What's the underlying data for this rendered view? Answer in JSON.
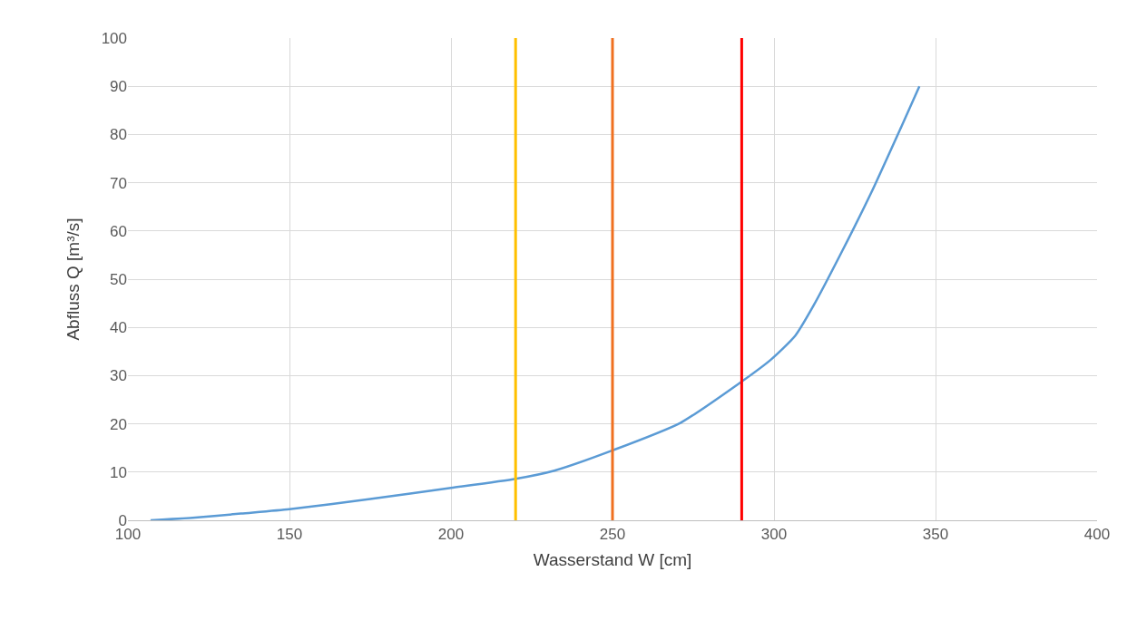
{
  "chart_data": {
    "type": "line",
    "xlabel": "Wasserstand W [cm]",
    "ylabel": "Abfluss Q [m³/s]",
    "x": [
      107,
      120,
      135,
      150,
      175,
      200,
      220,
      232,
      250,
      271,
      289,
      299,
      306.6,
      312.3,
      320.7,
      330,
      339.4,
      345
    ],
    "series": [
      {
        "color": "#5b9bd5",
        "values": [
          0,
          0.5,
          1.4,
          2.3,
          4.4,
          6.7,
          8.6,
          10.3,
          14.5,
          20.2,
          28.3,
          33.3,
          38.3,
          44.6,
          55.3,
          67.8,
          81.6,
          90
        ]
      }
    ],
    "xlim": [
      100,
      400
    ],
    "xticks": [
      100,
      150,
      200,
      250,
      300,
      350,
      400
    ],
    "ylim": [
      0,
      100
    ],
    "yticks": [
      0,
      10,
      20,
      30,
      40,
      50,
      60,
      70,
      80,
      90,
      100
    ],
    "ref_lines": [
      {
        "axis": "x",
        "value": 220,
        "color": "#ffc000"
      },
      {
        "axis": "x",
        "value": 250,
        "color": "#f07020"
      },
      {
        "axis": "x",
        "value": 290,
        "color": "#ff0000"
      }
    ],
    "grid": true,
    "marker": "none",
    "line_style": "solid"
  }
}
